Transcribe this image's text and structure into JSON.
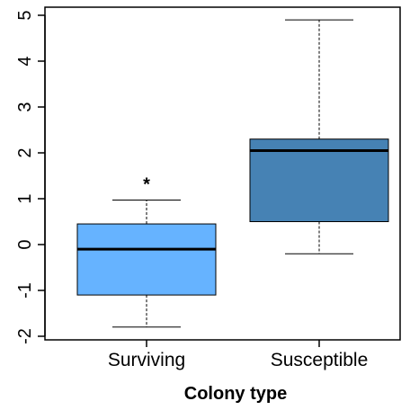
{
  "chart_data": {
    "type": "boxplot",
    "xlabel": "Colony type",
    "ylabel": "",
    "ylim": [
      -2,
      5
    ],
    "yticks": [
      -2,
      -1,
      0,
      1,
      2,
      3,
      4,
      5
    ],
    "categories": [
      "Surviving",
      "Susceptible"
    ],
    "boxes": [
      {
        "category": "Surviving",
        "whisker_low": -1.8,
        "q1": -1.1,
        "median": -0.1,
        "q3": 0.45,
        "whisker_high": 0.97,
        "color": "#66b3ff",
        "annotation": "*"
      },
      {
        "category": "Susceptible",
        "whisker_low": -0.2,
        "q1": 0.5,
        "median": 2.05,
        "q3": 2.3,
        "whisker_high": 4.9,
        "color": "#4682b4",
        "annotation": ""
      }
    ],
    "grid": false,
    "legend": "none"
  }
}
